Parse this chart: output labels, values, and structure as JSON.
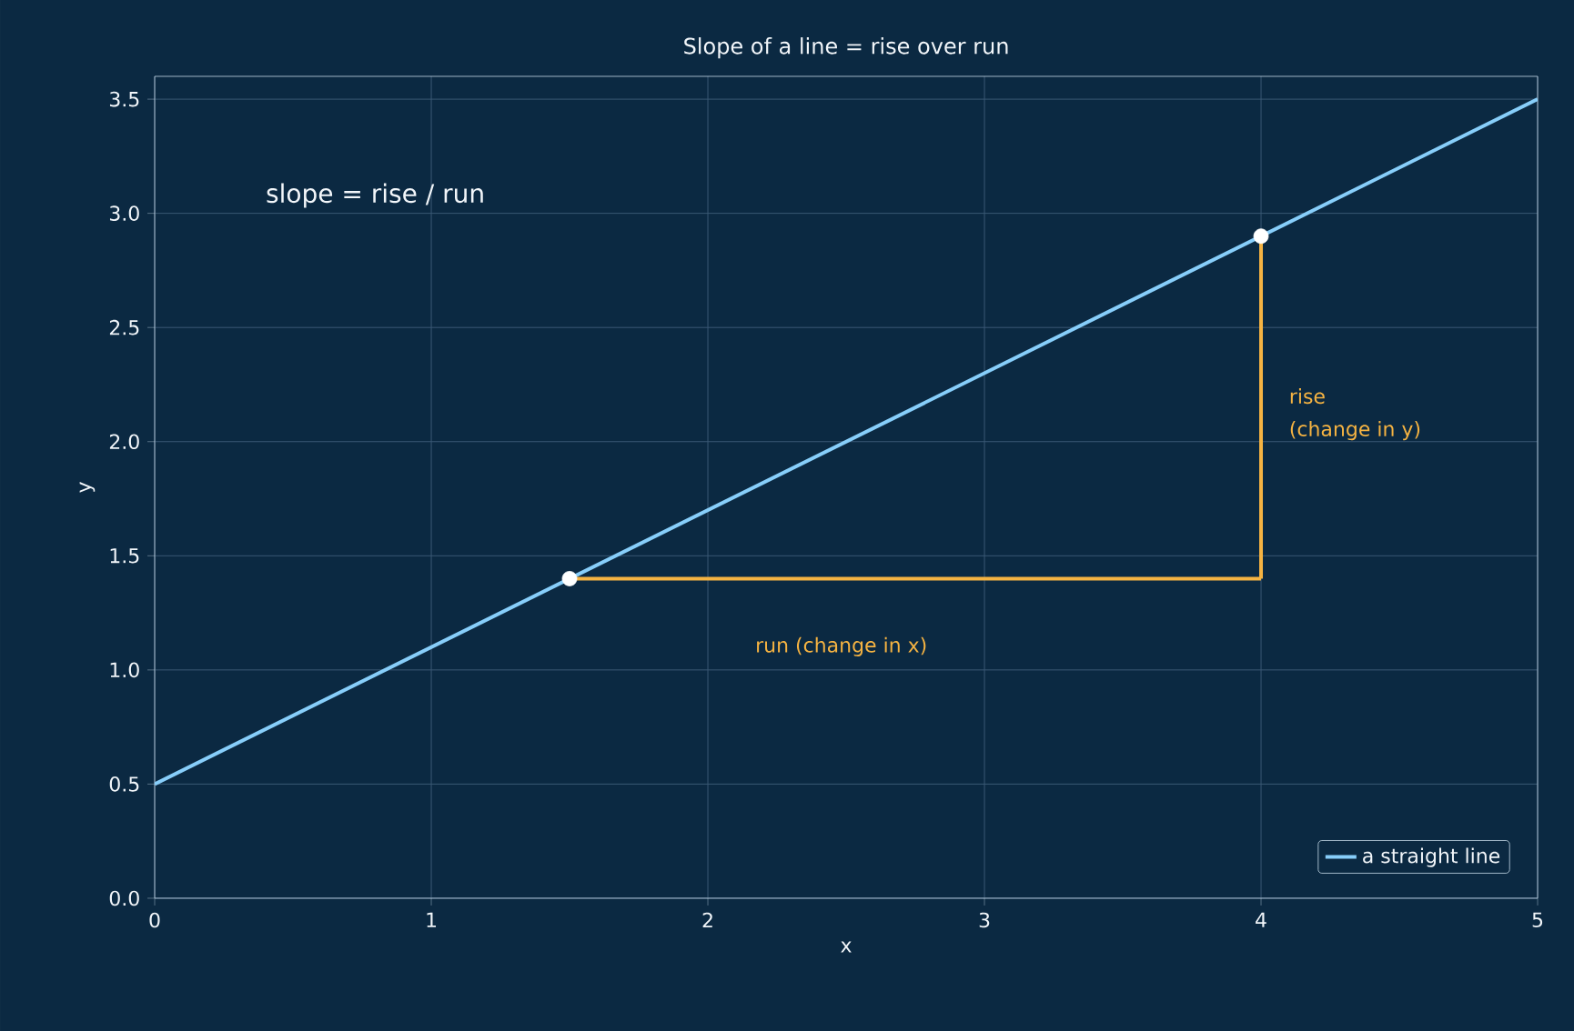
{
  "chart_data": {
    "type": "line",
    "title": "Slope of a line = rise over run",
    "xlabel": "x",
    "ylabel": "y",
    "xlim": [
      0,
      5
    ],
    "ylim": [
      0,
      3.6
    ],
    "xticks": [
      0,
      1,
      2,
      3,
      4,
      5
    ],
    "yticks": [
      {
        "value": 0,
        "label": "0.0"
      },
      {
        "value": 0.5,
        "label": "0.5"
      },
      {
        "value": 1,
        "label": "1.0"
      },
      {
        "value": 1.5,
        "label": "1.5"
      },
      {
        "value": 2,
        "label": "2.0"
      },
      {
        "value": 2.5,
        "label": "2.5"
      },
      {
        "value": 3,
        "label": "3.0"
      },
      {
        "value": 3.5,
        "label": "3.5"
      }
    ],
    "grid": true,
    "legend": "bottom right",
    "series": [
      {
        "name": "a straight line",
        "color": "#87cefa",
        "x": [
          0,
          5
        ],
        "values": [
          0.5,
          3.5
        ]
      },
      {
        "color": "#f5b342",
        "x": [
          1.5,
          4
        ],
        "values": [
          1.4,
          1.4
        ]
      },
      {
        "color": "#f5b342",
        "x": [
          4,
          4
        ],
        "values": [
          1.4,
          2.9
        ]
      },
      {
        "type": "scatter",
        "color": "#ffffff",
        "marker": "circle",
        "x": [
          1.5,
          4
        ],
        "values": [
          1.4,
          2.9
        ]
      }
    ],
    "annotations": [
      "slope = rise / run",
      "run  (change in x)",
      "rise",
      "(change in y)"
    ]
  }
}
